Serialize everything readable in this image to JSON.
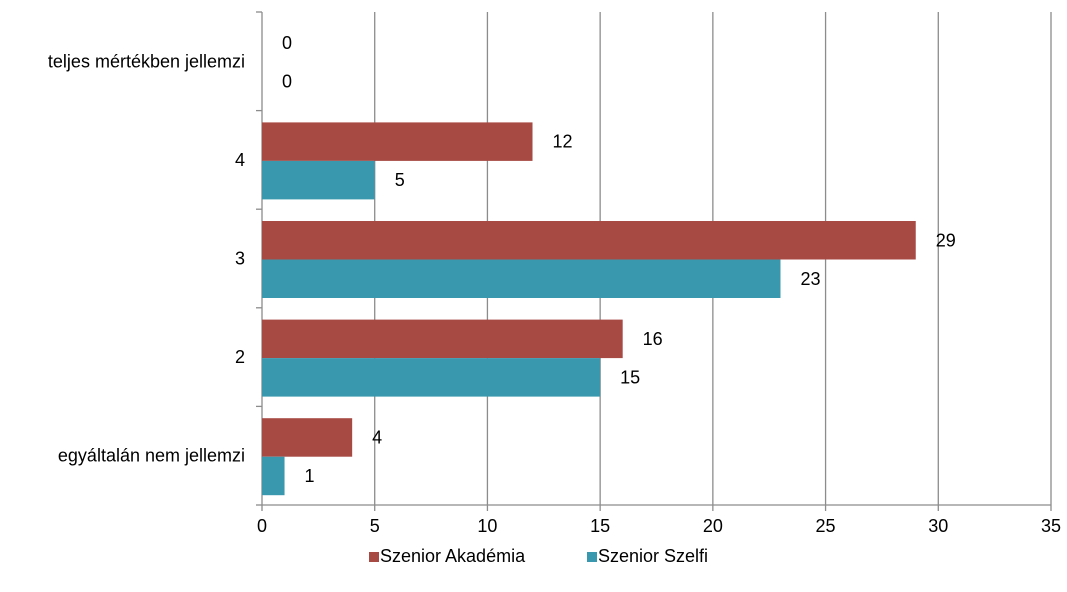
{
  "chart_data": {
    "type": "bar",
    "orientation": "horizontal",
    "categories": [
      "egyáltalán nem jellemzi",
      "2",
      "3",
      "4",
      "teljes mértékben jellemzi"
    ],
    "series": [
      {
        "name": "Szenior Akadémia",
        "color": "#A84A44",
        "values": [
          4,
          16,
          29,
          12,
          0
        ]
      },
      {
        "name": "Szenior Szelfi",
        "color": "#3A98AE",
        "values": [
          1,
          15,
          23,
          5,
          0
        ]
      }
    ],
    "xlim": [
      0,
      35
    ],
    "xticks": [
      "0",
      "5",
      "10",
      "15",
      "20",
      "25",
      "30",
      "35"
    ],
    "grid": "vertical",
    "legend_position": "bottom",
    "title": "",
    "xlabel": "",
    "ylabel": ""
  }
}
